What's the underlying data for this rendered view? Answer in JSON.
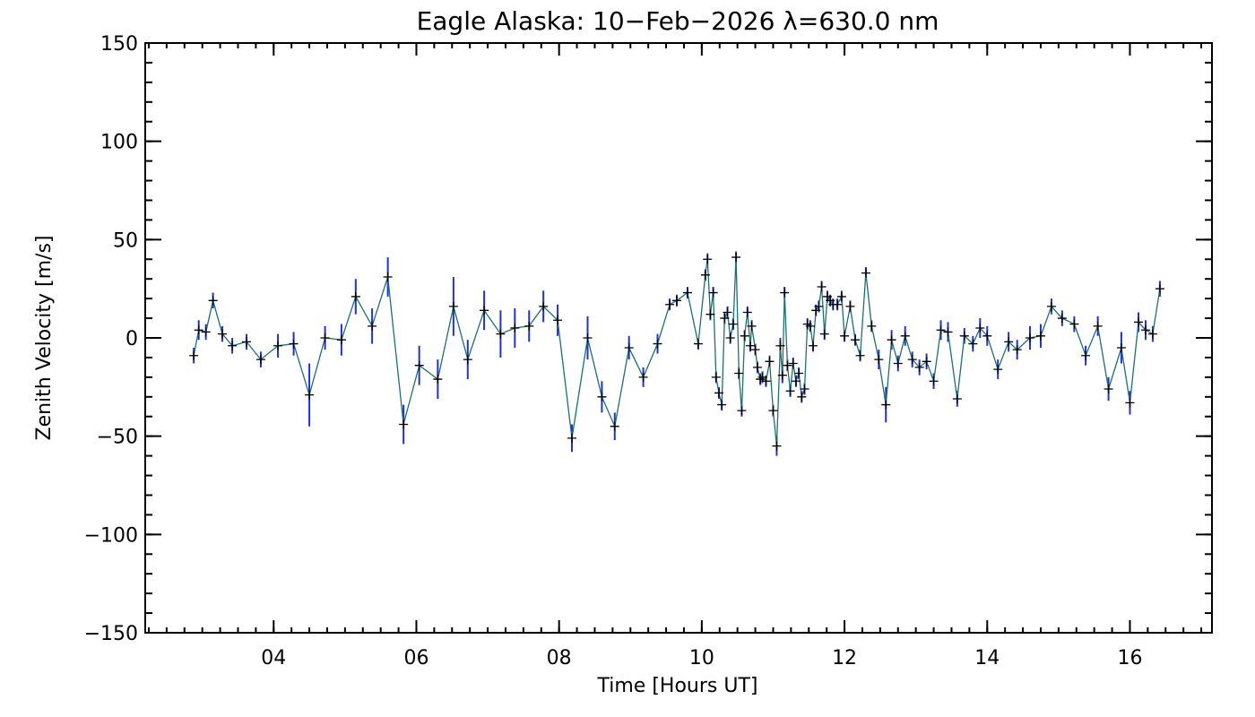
{
  "chart_data": {
    "type": "line",
    "title": "Eagle Alaska: 10−Feb−2026 λ=630.0 nm",
    "xlabel": "Time [Hours UT]",
    "ylabel": "Zenith Velocity [m/s]",
    "xlim": [
      2.2,
      17.15
    ],
    "ylim": [
      -150,
      150
    ],
    "x_ticks": [
      {
        "value": 4,
        "label": "04"
      },
      {
        "value": 6,
        "label": "06"
      },
      {
        "value": 8,
        "label": "08"
      },
      {
        "value": 10,
        "label": "10"
      },
      {
        "value": 12,
        "label": "12"
      },
      {
        "value": 14,
        "label": "14"
      },
      {
        "value": 16,
        "label": "16"
      }
    ],
    "y_ticks": [
      {
        "value": 150,
        "label": "150"
      },
      {
        "value": 100,
        "label": "100"
      },
      {
        "value": 50,
        "label": "50"
      },
      {
        "value": 0,
        "label": "0"
      },
      {
        "value": -50,
        "label": "−50"
      },
      {
        "value": -100,
        "label": "−100"
      },
      {
        "value": -150,
        "label": "−150"
      }
    ],
    "x_minor_step": 0.25,
    "y_minor_step": 10,
    "grid": false,
    "colors": {
      "line": "#1f6f6f",
      "errorbar": "#2233cc",
      "marker": "#000000",
      "axes": "#000000"
    },
    "series": [
      {
        "name": "Zenith Velocity",
        "points": [
          [
            2.88,
            -9,
            4
          ],
          [
            2.95,
            4,
            5
          ],
          [
            3.05,
            3,
            4
          ],
          [
            3.15,
            19,
            4
          ],
          [
            3.28,
            2,
            4
          ],
          [
            3.42,
            -4,
            4
          ],
          [
            3.62,
            -2,
            4
          ],
          [
            3.82,
            -11,
            4
          ],
          [
            4.06,
            -4,
            6
          ],
          [
            4.28,
            -3,
            6
          ],
          [
            4.5,
            -29,
            16
          ],
          [
            4.72,
            0,
            6
          ],
          [
            4.95,
            -1,
            8
          ],
          [
            5.15,
            21,
            9
          ],
          [
            5.38,
            6,
            9
          ],
          [
            5.6,
            31,
            10
          ],
          [
            5.82,
            -44,
            10
          ],
          [
            6.04,
            -14,
            10
          ],
          [
            6.3,
            -21,
            10
          ],
          [
            6.52,
            16,
            15
          ],
          [
            6.72,
            -11,
            10
          ],
          [
            6.95,
            14,
            10
          ],
          [
            7.18,
            2,
            12
          ],
          [
            7.38,
            5,
            10
          ],
          [
            7.58,
            6,
            8
          ],
          [
            7.78,
            16,
            8
          ],
          [
            7.98,
            9,
            8
          ],
          [
            8.18,
            -51,
            7
          ],
          [
            8.4,
            0,
            11
          ],
          [
            8.6,
            -30,
            8
          ],
          [
            8.78,
            -45,
            7
          ],
          [
            8.98,
            -5,
            6
          ],
          [
            9.18,
            -20,
            5
          ],
          [
            9.38,
            -3,
            5
          ],
          [
            9.55,
            17,
            3
          ],
          [
            9.65,
            19,
            3
          ],
          [
            9.8,
            23,
            3
          ],
          [
            9.95,
            -3,
            3
          ],
          [
            10.05,
            32,
            3
          ],
          [
            10.08,
            40,
            3
          ],
          [
            10.12,
            12,
            3
          ],
          [
            10.16,
            23,
            3
          ],
          [
            10.2,
            -20,
            3
          ],
          [
            10.24,
            -28,
            3
          ],
          [
            10.28,
            -34,
            3
          ],
          [
            10.32,
            10,
            3
          ],
          [
            10.36,
            13,
            3
          ],
          [
            10.4,
            0,
            3
          ],
          [
            10.44,
            7,
            3
          ],
          [
            10.48,
            41,
            3
          ],
          [
            10.52,
            -18,
            3
          ],
          [
            10.56,
            -37,
            3
          ],
          [
            10.6,
            1,
            3
          ],
          [
            10.64,
            13,
            3
          ],
          [
            10.68,
            -4,
            3
          ],
          [
            10.7,
            6,
            3
          ],
          [
            10.75,
            -6,
            3
          ],
          [
            10.78,
            -15,
            3
          ],
          [
            10.82,
            -21,
            3
          ],
          [
            10.85,
            -20,
            3
          ],
          [
            10.9,
            -22,
            3
          ],
          [
            10.95,
            -12,
            3
          ],
          [
            11.0,
            -37,
            3
          ],
          [
            11.05,
            -55,
            5
          ],
          [
            11.1,
            -4,
            4
          ],
          [
            11.13,
            -19,
            4
          ],
          [
            11.16,
            23,
            3
          ],
          [
            11.2,
            -14,
            3
          ],
          [
            11.24,
            -27,
            3
          ],
          [
            11.28,
            -13,
            3
          ],
          [
            11.32,
            -22,
            3
          ],
          [
            11.36,
            -18,
            3
          ],
          [
            11.4,
            -30,
            3
          ],
          [
            11.44,
            -26,
            3
          ],
          [
            11.48,
            7,
            3
          ],
          [
            11.52,
            6,
            3
          ],
          [
            11.56,
            -4,
            3
          ],
          [
            11.6,
            14,
            3
          ],
          [
            11.64,
            16,
            3
          ],
          [
            11.68,
            26,
            3
          ],
          [
            11.72,
            2,
            3
          ],
          [
            11.76,
            21,
            3
          ],
          [
            11.8,
            19,
            3
          ],
          [
            11.84,
            17,
            3
          ],
          [
            11.9,
            17,
            3
          ],
          [
            11.96,
            21,
            3
          ],
          [
            12.0,
            1,
            3
          ],
          [
            12.08,
            16,
            3
          ],
          [
            12.15,
            -1,
            3
          ],
          [
            12.22,
            -9,
            3
          ],
          [
            12.3,
            33,
            3
          ],
          [
            12.38,
            6,
            3
          ],
          [
            12.48,
            -11,
            5
          ],
          [
            12.58,
            -34,
            9
          ],
          [
            12.66,
            -1,
            5
          ],
          [
            12.75,
            -13,
            4
          ],
          [
            12.85,
            1,
            5
          ],
          [
            12.95,
            -11,
            4
          ],
          [
            13.05,
            -15,
            4
          ],
          [
            13.15,
            -12,
            4
          ],
          [
            13.25,
            -22,
            4
          ],
          [
            13.35,
            4,
            5
          ],
          [
            13.45,
            3,
            5
          ],
          [
            13.58,
            -31,
            4
          ],
          [
            13.68,
            1,
            4
          ],
          [
            13.8,
            -3,
            4
          ],
          [
            13.9,
            5,
            5
          ],
          [
            14.0,
            1,
            5
          ],
          [
            14.15,
            -16,
            5
          ],
          [
            14.3,
            -2,
            5
          ],
          [
            14.42,
            -6,
            5
          ],
          [
            14.6,
            0,
            6
          ],
          [
            14.75,
            1,
            6
          ],
          [
            14.9,
            16,
            4
          ],
          [
            15.05,
            10,
            4
          ],
          [
            15.22,
            7,
            4
          ],
          [
            15.38,
            -9,
            5
          ],
          [
            15.55,
            6,
            5
          ],
          [
            15.7,
            -26,
            6
          ],
          [
            15.88,
            -5,
            8
          ],
          [
            16.0,
            -33,
            6
          ],
          [
            16.12,
            8,
            5
          ],
          [
            16.22,
            4,
            5
          ],
          [
            16.32,
            2,
            4
          ],
          [
            16.42,
            25,
            4
          ]
        ]
      }
    ]
  }
}
